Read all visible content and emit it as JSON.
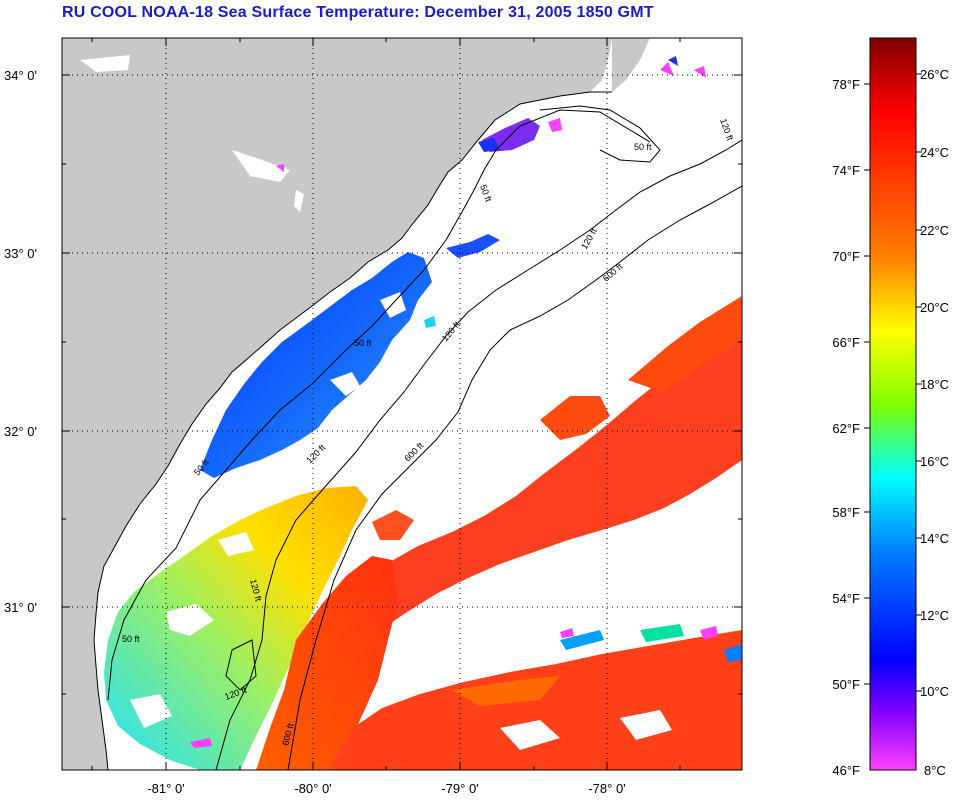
{
  "title": "RU COOL  NOAA-18  Sea Surface Temperature:  December 31, 2005 1850 GMT",
  "map": {
    "lat_labels": [
      "34° 0'",
      "33° 0'",
      "32° 0'",
      "31° 0'"
    ],
    "lon_labels": [
      "-81° 0'",
      "-80° 0'",
      "-79° 0'",
      "-78° 0'"
    ],
    "grid": true,
    "land_color": "#c8c8c8",
    "contour_labels": [
      "50 ft",
      "120 ft",
      "600 ft"
    ]
  },
  "colorbar": {
    "fahrenheit_labels": [
      "78°F",
      "74°F",
      "70°F",
      "66°F",
      "62°F",
      "58°F",
      "54°F",
      "50°F",
      "46°F"
    ],
    "celsius_labels": [
      "26°C",
      "24°C",
      "22°C",
      "20°C",
      "18°C",
      "16°C",
      "14°C",
      "12°C",
      "10°C",
      "8°C"
    ],
    "stops": [
      "#800000",
      "#ff0000",
      "#ff8000",
      "#ffff00",
      "#80ff00",
      "#00ffff",
      "#0080ff",
      "#0000ff",
      "#8000ff",
      "#ff40ff"
    ]
  }
}
